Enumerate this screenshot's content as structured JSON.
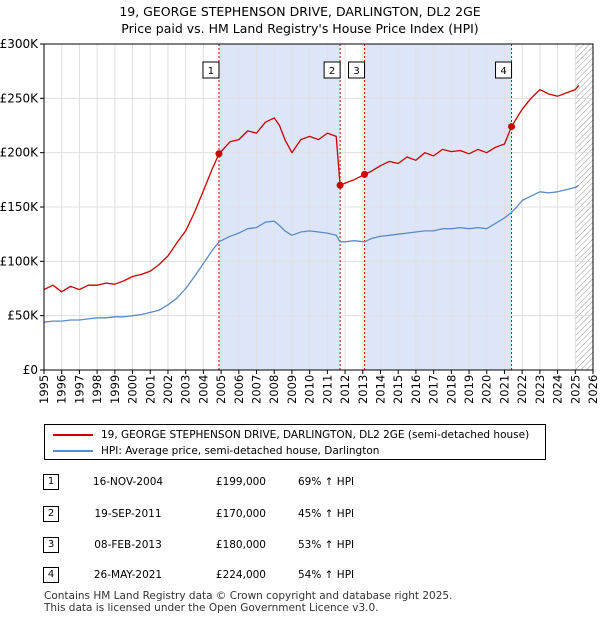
{
  "title_line1": "19, GEORGE STEPHENSON DRIVE, DARLINGTON, DL2 2GE",
  "title_line2": "Price paid vs. HM Land Registry's House Price Index (HPI)",
  "colors": {
    "property": "#cc0000",
    "hpi": "#5b8ac9",
    "shade": "#dde6f8",
    "grid": "#e0e0e0",
    "hatch": "#999999"
  },
  "legend": {
    "property_label": "19, GEORGE STEPHENSON DRIVE, DARLINGTON, DL2 2GE (semi-detached house)",
    "hpi_label": "HPI: Average price, semi-detached house, Darlington"
  },
  "transactions": [
    {
      "num": "1",
      "date": "16-NOV-2004",
      "price": "£199,000",
      "hpi": "69% ↑ HPI"
    },
    {
      "num": "2",
      "date": "19-SEP-2011",
      "price": "£170,000",
      "hpi": "45% ↑ HPI"
    },
    {
      "num": "3",
      "date": "08-FEB-2013",
      "price": "£180,000",
      "hpi": "53% ↑ HPI"
    },
    {
      "num": "4",
      "date": "26-MAY-2021",
      "price": "£224,000",
      "hpi": "54% ↑ HPI"
    }
  ],
  "footer_line1": "Contains HM Land Registry data © Crown copyright and database right 2025.",
  "footer_line2": "This data is licensed under the Open Government Licence v3.0.",
  "chart_data": {
    "type": "line",
    "title": "19, GEORGE STEPHENSON DRIVE, DARLINGTON, DL2 2GE",
    "subtitle": "Price paid vs. HM Land Registry's House Price Index (HPI)",
    "xlabel": "",
    "ylabel": "",
    "xlim": [
      1995,
      2026
    ],
    "ylim": [
      0,
      300000
    ],
    "x_ticks": [
      1995,
      1996,
      1997,
      1998,
      1999,
      2000,
      2001,
      2002,
      2003,
      2004,
      2005,
      2006,
      2007,
      2008,
      2009,
      2010,
      2011,
      2012,
      2013,
      2014,
      2015,
      2016,
      2017,
      2018,
      2019,
      2020,
      2021,
      2022,
      2023,
      2024,
      2025,
      2026
    ],
    "y_ticks": [
      {
        "value": 0,
        "label": "£0"
      },
      {
        "value": 50000,
        "label": "£50K"
      },
      {
        "value": 100000,
        "label": "£100K"
      },
      {
        "value": 150000,
        "label": "£150K"
      },
      {
        "value": 200000,
        "label": "£200K"
      },
      {
        "value": 250000,
        "label": "£250K"
      },
      {
        "value": 300000,
        "label": "£300K"
      }
    ],
    "grid": true,
    "shaded_periods": [
      [
        2004.88,
        2011.72
      ],
      [
        2013.1,
        2021.4
      ]
    ],
    "hatched_after": 2025.0,
    "series": [
      {
        "name": "19, GEORGE STEPHENSON DRIVE, DARLINGTON, DL2 2GE (semi-detached house)",
        "x": [
          1995,
          1995.5,
          1996,
          1996.5,
          1997,
          1997.5,
          1998,
          1998.5,
          1999,
          1999.5,
          2000,
          2000.5,
          2001,
          2001.5,
          2002,
          2002.5,
          2003,
          2003.5,
          2004,
          2004.5,
          2004.88,
          2005.5,
          2006,
          2006.5,
          2007,
          2007.5,
          2008,
          2008.3,
          2008.6,
          2009,
          2009.5,
          2010,
          2010.5,
          2011,
          2011.5,
          2011.72,
          2012,
          2012.5,
          2013.1,
          2013.5,
          2014,
          2014.5,
          2015,
          2015.5,
          2016,
          2016.5,
          2017,
          2017.5,
          2018,
          2018.5,
          2019,
          2019.5,
          2020,
          2020.5,
          2021,
          2021.4,
          2021.7,
          2022,
          2022.5,
          2023,
          2023.5,
          2024,
          2024.5,
          2025,
          2025.2
        ],
        "y": [
          74000,
          78000,
          72000,
          77000,
          74000,
          78000,
          78000,
          80000,
          79000,
          82000,
          86000,
          88000,
          91000,
          97000,
          105000,
          117000,
          128000,
          145000,
          165000,
          185000,
          199000,
          210000,
          212000,
          220000,
          218000,
          228000,
          232000,
          225000,
          212000,
          200000,
          212000,
          215000,
          212000,
          218000,
          215000,
          170000,
          172000,
          175000,
          180000,
          183000,
          188000,
          192000,
          190000,
          196000,
          193000,
          200000,
          197000,
          203000,
          201000,
          202000,
          199000,
          203000,
          200000,
          205000,
          208000,
          224000,
          232000,
          240000,
          250000,
          258000,
          254000,
          252000,
          255000,
          258000,
          262000
        ]
      },
      {
        "name": "HPI: Average price, semi-detached house, Darlington",
        "x": [
          1995,
          1995.5,
          1996,
          1996.5,
          1997,
          1997.5,
          1998,
          1998.5,
          1999,
          1999.5,
          2000,
          2000.5,
          2001,
          2001.5,
          2002,
          2002.5,
          2003,
          2003.5,
          2004,
          2004.5,
          2004.88,
          2005.5,
          2006,
          2006.5,
          2007,
          2007.5,
          2008,
          2008.3,
          2008.6,
          2009,
          2009.5,
          2010,
          2010.5,
          2011,
          2011.5,
          2011.72,
          2012,
          2012.5,
          2013.1,
          2013.5,
          2014,
          2014.5,
          2015,
          2015.5,
          2016,
          2016.5,
          2017,
          2017.5,
          2018,
          2018.5,
          2019,
          2019.5,
          2020,
          2020.5,
          2021,
          2021.4,
          2021.7,
          2022,
          2022.5,
          2023,
          2023.5,
          2024,
          2024.5,
          2025,
          2025.2
        ],
        "y": [
          44000,
          45000,
          45000,
          46000,
          46000,
          47000,
          48000,
          48000,
          49000,
          49000,
          50000,
          51000,
          53000,
          55000,
          60000,
          66000,
          75000,
          86000,
          98000,
          110000,
          118000,
          123000,
          126000,
          130000,
          131000,
          136000,
          137000,
          133000,
          128000,
          124000,
          127000,
          128000,
          127000,
          126000,
          124000,
          118000,
          118000,
          119000,
          118000,
          121000,
          123000,
          124000,
          125000,
          126000,
          127000,
          128000,
          128000,
          130000,
          130000,
          131000,
          130000,
          131000,
          130000,
          135000,
          140000,
          145000,
          150000,
          156000,
          160000,
          164000,
          163000,
          164000,
          166000,
          168000,
          170000
        ]
      }
    ],
    "markers": [
      {
        "label": "1",
        "x": 2004.88,
        "y": 199000
      },
      {
        "label": "2",
        "x": 2011.72,
        "y": 170000
      },
      {
        "label": "3",
        "x": 2013.1,
        "y": 180000
      },
      {
        "label": "4",
        "x": 2021.4,
        "y": 224000
      }
    ],
    "legend_position": "below"
  }
}
